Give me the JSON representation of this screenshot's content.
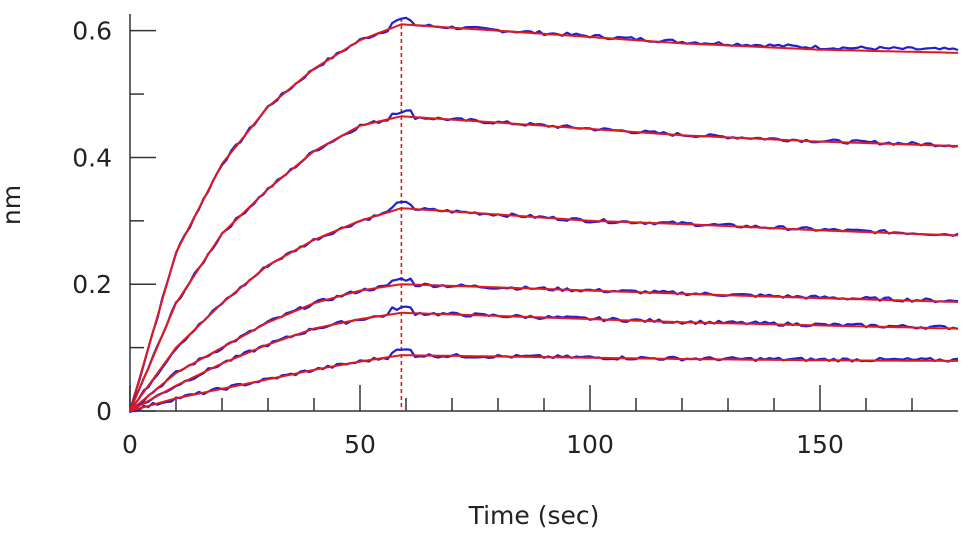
{
  "chart_data": {
    "type": "line",
    "xlabel": "Time (sec)",
    "ylabel": "nm",
    "xlim": [
      0,
      180
    ],
    "ylim": [
      0,
      0.62
    ],
    "x_ticks": [
      0,
      50,
      100,
      150
    ],
    "x_tick_labels": [
      "0",
      "50",
      "100",
      "150"
    ],
    "y_ticks": [
      0,
      0.2,
      0.4,
      0.6
    ],
    "y_tick_labels": [
      "0",
      "0.2",
      "0.4",
      "0.6"
    ],
    "dissociation_start": 59,
    "grid": false,
    "colors": {
      "measured": "#1f1fd6",
      "fit": "#e01a1a",
      "marker": "#d21f1f"
    },
    "series": [
      {
        "x": [
          0,
          10,
          20,
          30,
          40,
          50,
          59,
          80,
          100,
          120,
          150,
          180
        ],
        "y": [
          0.0,
          0.25,
          0.39,
          0.48,
          0.54,
          0.585,
          0.61,
          0.6,
          0.59,
          0.58,
          0.57,
          0.565
        ]
      },
      {
        "x": [
          0,
          10,
          20,
          30,
          40,
          50,
          59,
          80,
          100,
          120,
          150,
          180
        ],
        "y": [
          0.0,
          0.17,
          0.28,
          0.35,
          0.41,
          0.45,
          0.465,
          0.455,
          0.445,
          0.435,
          0.425,
          0.418
        ]
      },
      {
        "x": [
          0,
          10,
          20,
          30,
          40,
          50,
          59,
          80,
          100,
          120,
          150,
          180
        ],
        "y": [
          0.0,
          0.1,
          0.17,
          0.23,
          0.27,
          0.3,
          0.32,
          0.31,
          0.3,
          0.295,
          0.285,
          0.277
        ]
      },
      {
        "x": [
          0,
          10,
          20,
          30,
          40,
          50,
          59,
          80,
          100,
          120,
          150,
          180
        ],
        "y": [
          0.0,
          0.06,
          0.1,
          0.14,
          0.17,
          0.19,
          0.2,
          0.195,
          0.19,
          0.185,
          0.178,
          0.172
        ]
      },
      {
        "x": [
          0,
          10,
          20,
          30,
          40,
          50,
          59,
          80,
          100,
          120,
          150,
          180
        ],
        "y": [
          0.0,
          0.04,
          0.075,
          0.105,
          0.13,
          0.145,
          0.155,
          0.15,
          0.145,
          0.14,
          0.135,
          0.13
        ]
      },
      {
        "x": [
          0,
          10,
          20,
          30,
          40,
          50,
          59,
          80,
          100,
          120,
          150,
          180
        ],
        "y": [
          0.0,
          0.02,
          0.035,
          0.05,
          0.065,
          0.078,
          0.088,
          0.086,
          0.084,
          0.082,
          0.08,
          0.079
        ]
      }
    ]
  }
}
